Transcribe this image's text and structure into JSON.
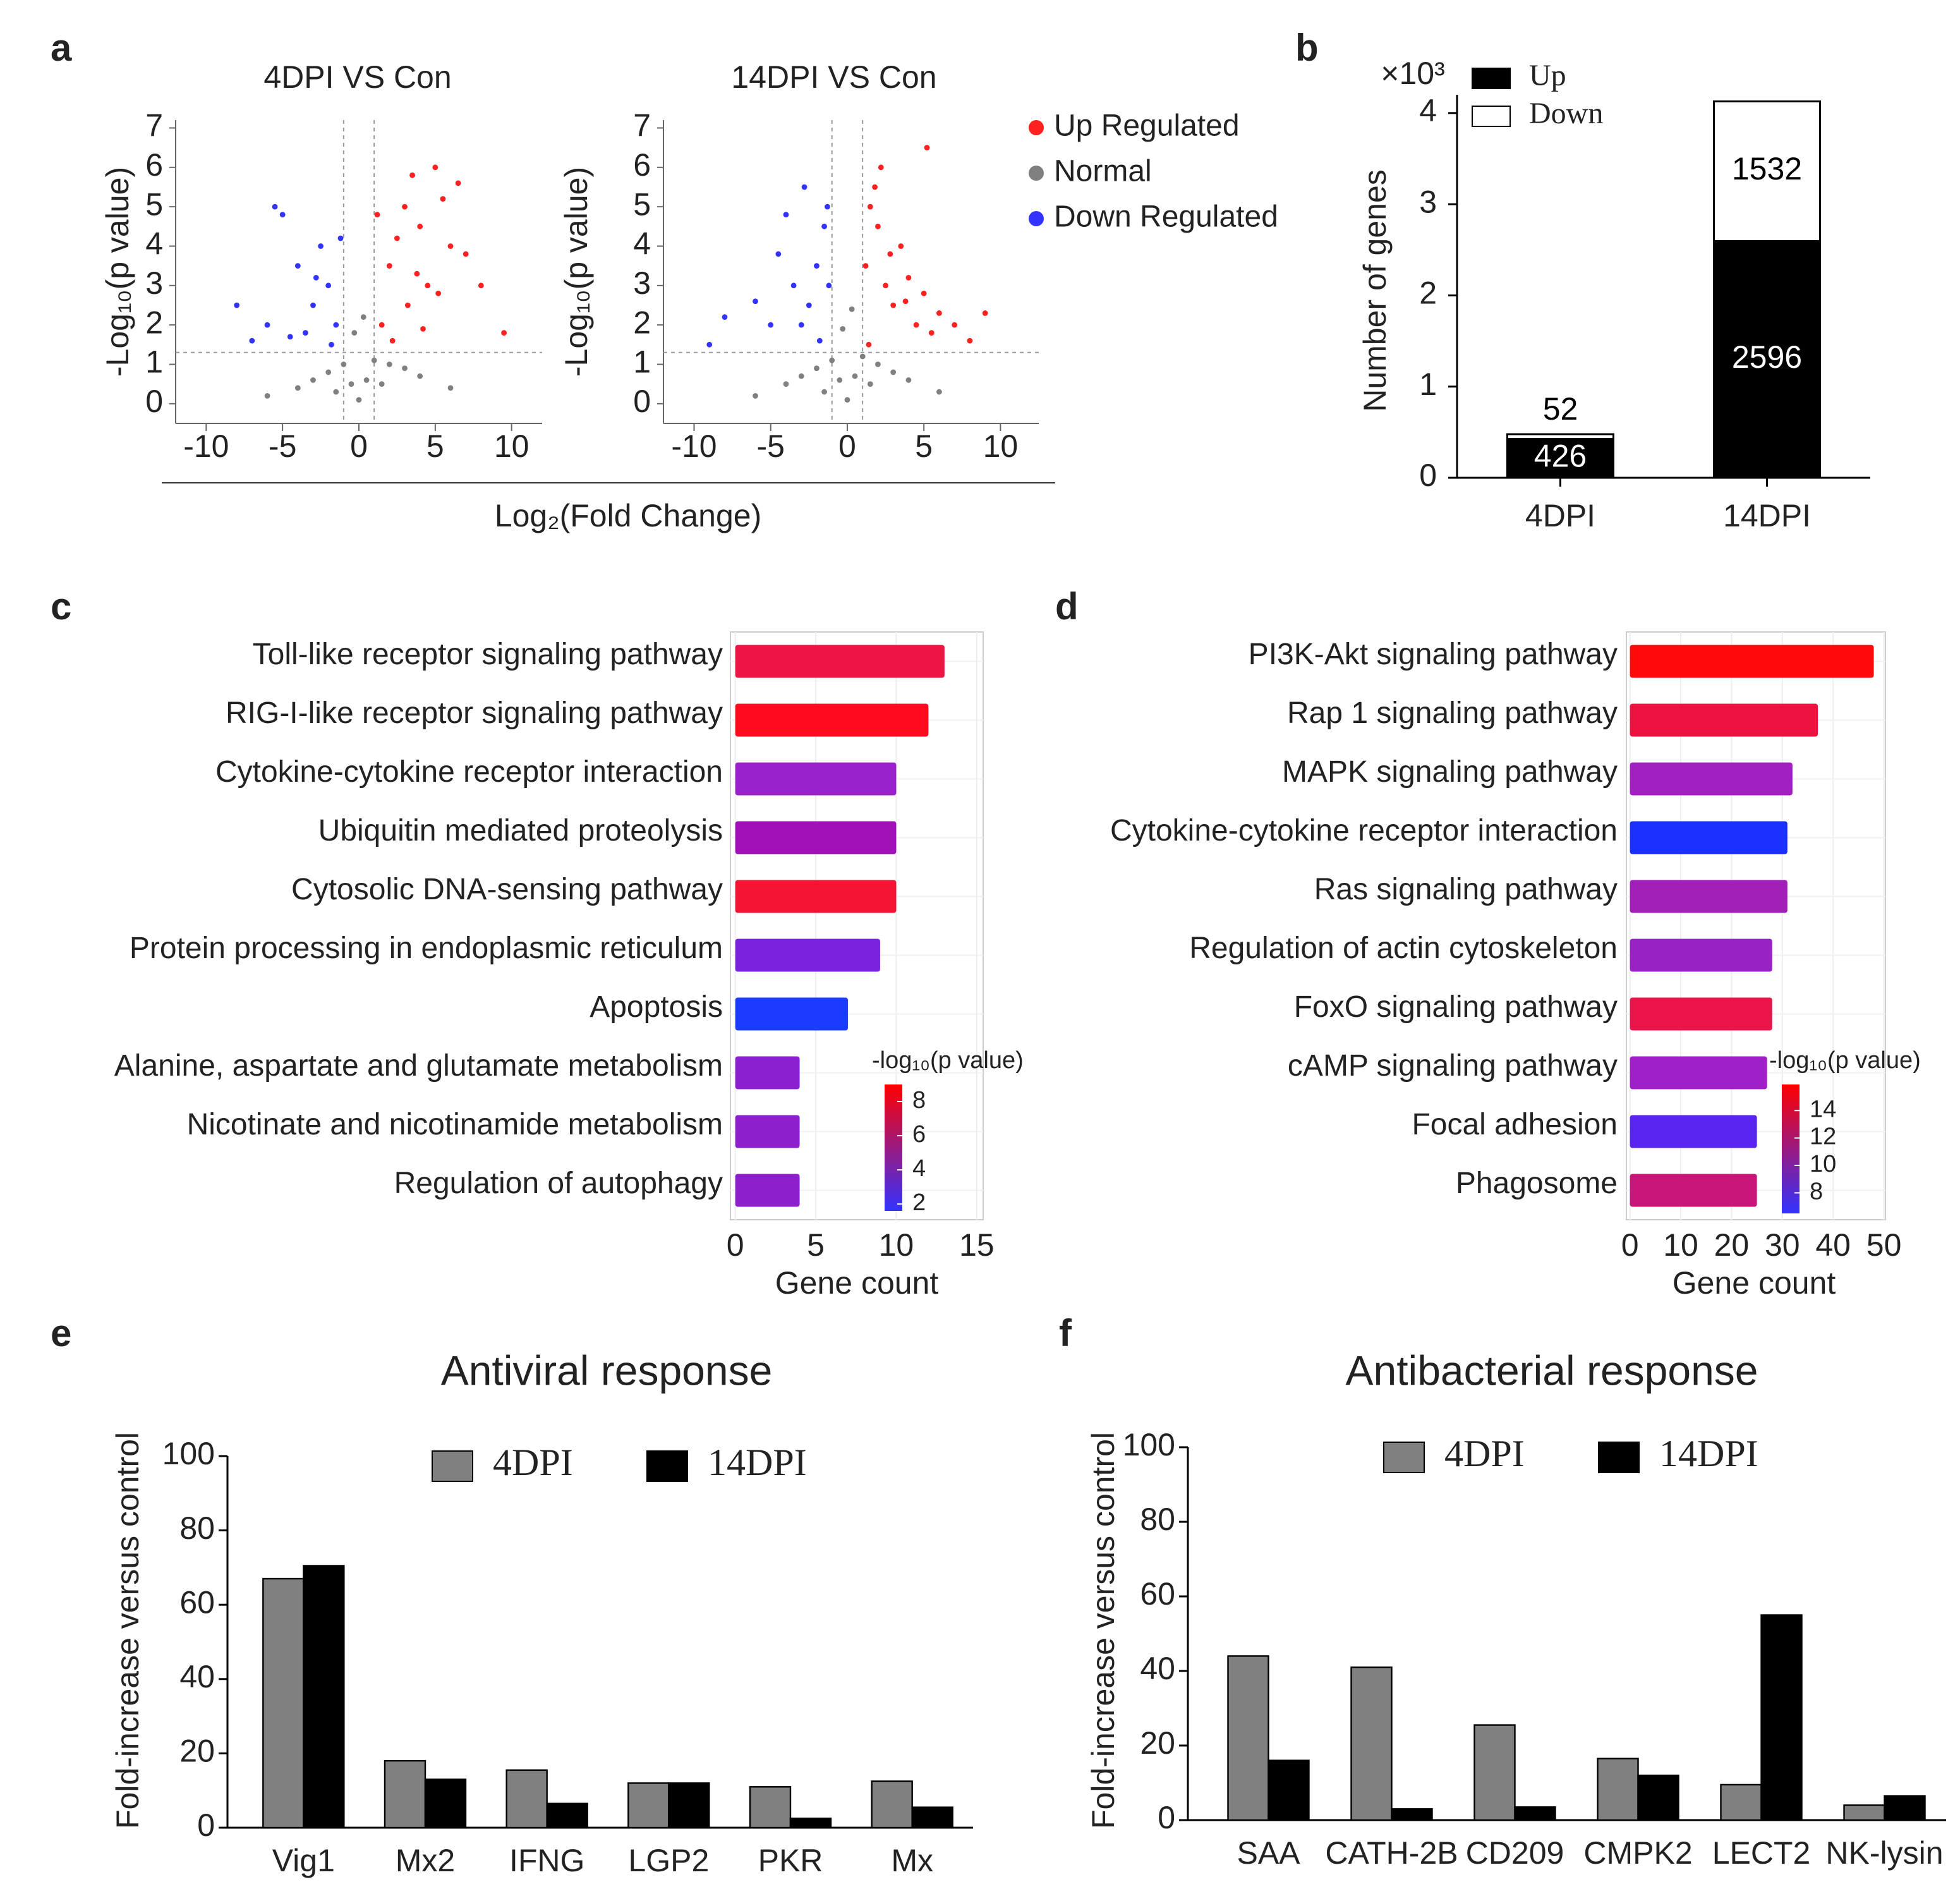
{
  "chart_data": [
    {
      "type": "scatter",
      "panel_label": "a",
      "title": "4DPI VS Con",
      "xlabel": "Log₂(Fold Change)",
      "ylabel": "-Log₁₀(p value)",
      "xlim": [
        -12,
        12
      ],
      "ylim": [
        -0.5,
        7.2
      ],
      "xticks": [
        -10,
        -5,
        0,
        5,
        10
      ],
      "yticks": [
        0,
        1,
        2,
        3,
        4,
        5,
        6,
        7
      ],
      "vlines": [
        -1,
        1
      ],
      "hline": 1.3,
      "series": [
        {
          "name": "Up Regulated",
          "color": "#ff2020",
          "x": [
            1.5,
            2,
            2.5,
            3,
            3.5,
            4,
            4.5,
            5,
            5.5,
            6,
            7,
            8,
            9.5,
            2.2,
            3.2,
            4.2,
            5.2,
            1.2,
            6.5,
            3.8
          ],
          "y": [
            2,
            3.5,
            4.2,
            5,
            5.8,
            4.5,
            3,
            6,
            5.2,
            4,
            3.8,
            3,
            1.8,
            1.6,
            2.5,
            1.9,
            2.8,
            4.8,
            5.6,
            3.3
          ]
        },
        {
          "name": "Normal",
          "color": "#808080",
          "x": [
            -0.5,
            0,
            0.5,
            -1,
            1,
            -2,
            2,
            -3,
            3,
            -4,
            4,
            -0.3,
            0.3,
            -1.5,
            1.5,
            -6,
            6
          ],
          "y": [
            0.5,
            0.1,
            0.6,
            1,
            1.1,
            0.8,
            1,
            0.6,
            0.9,
            0.4,
            0.7,
            1.8,
            2.2,
            0.3,
            0.5,
            0.2,
            0.4
          ]
        },
        {
          "name": "Down Regulated",
          "color": "#3333ff",
          "x": [
            -1.5,
            -2,
            -2.5,
            -3,
            -3.5,
            -4,
            -5,
            -6,
            -7,
            -8,
            -1.8,
            -2.8,
            -1.2,
            -4.5,
            -5.5
          ],
          "y": [
            2,
            3,
            4,
            2.5,
            1.8,
            3.5,
            4.8,
            2,
            1.6,
            2.5,
            1.5,
            3.2,
            4.2,
            1.7,
            5
          ]
        }
      ]
    },
    {
      "type": "scatter",
      "title": "14DPI VS Con",
      "ylabel": "-Log₁₀(p value)",
      "legend": "right",
      "xlim": [
        -12,
        12.5
      ],
      "ylim": [
        -0.5,
        7.2
      ],
      "xticks": [
        -10,
        -5,
        0,
        5,
        10
      ],
      "yticks": [
        0,
        1,
        2,
        3,
        4,
        5,
        6,
        7
      ],
      "vlines": [
        -1,
        1
      ],
      "hline": 1.3,
      "series": [
        {
          "name": "Up Regulated",
          "color": "#ff2020",
          "x": [
            1.2,
            1.5,
            2,
            2.5,
            3,
            3.5,
            4,
            4.5,
            5,
            5.5,
            6,
            7,
            8,
            9,
            1.8,
            2.8,
            3.8,
            1.4,
            2.2,
            5.2
          ],
          "y": [
            3.5,
            5,
            4.5,
            3,
            2.5,
            4,
            3.2,
            2,
            2.8,
            1.8,
            2.3,
            2,
            1.6,
            2.3,
            5.5,
            3.8,
            2.6,
            1.5,
            6,
            6.5
          ]
        },
        {
          "name": "Normal",
          "color": "#808080",
          "x": [
            -0.5,
            0,
            0.5,
            -1,
            1,
            -2,
            2,
            -3,
            3,
            -4,
            4,
            -0.3,
            0.3,
            -1.5,
            1.5,
            -6,
            6
          ],
          "y": [
            0.6,
            0.1,
            0.7,
            1.1,
            1.2,
            0.9,
            1,
            0.7,
            0.8,
            0.5,
            0.6,
            1.9,
            2.4,
            0.3,
            0.5,
            0.2,
            0.3
          ]
        },
        {
          "name": "Down Regulated",
          "color": "#3333ff",
          "x": [
            -1.2,
            -1.5,
            -2,
            -2.5,
            -3,
            -3.5,
            -4,
            -5,
            -6,
            -8,
            -9,
            -1.8,
            -2.8,
            -1.3,
            -4.5
          ],
          "y": [
            3,
            4.5,
            3.5,
            2.5,
            2,
            3,
            4.8,
            2,
            2.6,
            2.2,
            1.5,
            1.6,
            5.5,
            5,
            3.8
          ]
        }
      ]
    },
    {
      "type": "stacked_bar",
      "panel_label": "b",
      "ylabel": "Number of genes",
      "multiplier": "×10³",
      "legend": "top-left",
      "categories": [
        "4DPI",
        "14DPI"
      ],
      "ylim": [
        0,
        4200
      ],
      "yticks": [
        {
          "value": 0,
          "label": "0"
        },
        {
          "value": 1000,
          "label": "1"
        },
        {
          "value": 2000,
          "label": "2"
        },
        {
          "value": 3000,
          "label": "3"
        },
        {
          "value": 4000,
          "label": "4"
        }
      ],
      "series": [
        {
          "name": "Up",
          "color": "#000000",
          "values": [
            426,
            2596
          ]
        },
        {
          "name": "Down",
          "color": "#ffffff",
          "values": [
            52,
            1532
          ]
        }
      ]
    },
    {
      "type": "barh",
      "panel_label": "c",
      "xlabel": "Gene count",
      "grid": true,
      "categories": [
        "Toll-like receptor signaling pathway",
        "RIG-I-like receptor signaling pathway",
        "Cytokine-cytokine receptor interaction",
        "Ubiquitin mediated proteolysis",
        "Cytosolic DNA-sensing pathway",
        "Protein processing in endoplasmic reticulum",
        "Apoptosis",
        "Alanine, aspartate and glutamate metabolism",
        "Nicotinate and nicotinamide metabolism",
        "Regulation of autophagy"
      ],
      "values": [
        13,
        12,
        10,
        10,
        10,
        9,
        7,
        4,
        4,
        4
      ],
      "colors": [
        "#ee1544",
        "#ff0a1e",
        "#9922cc",
        "#a012b8",
        "#f51433",
        "#7a22dd",
        "#1a3cff",
        "#8a20d0",
        "#8e1fcc",
        "#8e1fcc"
      ],
      "xlim": [
        -0.3,
        15.4
      ],
      "xticks": [
        0,
        5,
        10,
        15
      ],
      "colorbar": {
        "label": "-log₁₀(p value)",
        "lim": [
          1.6,
          9
        ],
        "ticks": [
          2,
          4,
          6,
          8
        ],
        "colors": [
          "#3333ff",
          "#ff0000"
        ]
      }
    },
    {
      "type": "barh",
      "panel_label": "d",
      "xlabel": "Gene count",
      "grid": true,
      "categories": [
        "PI3K-Akt signaling pathway",
        "Rap 1 signaling pathway",
        "MAPK signaling pathway",
        "Cytokine-cytokine receptor interaction",
        "Ras signaling pathway",
        "Regulation of actin cytoskeleton",
        "FoxO signaling pathway",
        "cAMP signaling pathway",
        "Focal adhesion",
        "Phagosome"
      ],
      "values": [
        48,
        37,
        32,
        31,
        31,
        28,
        28,
        27,
        25,
        25
      ],
      "colors": [
        "#ff0a0a",
        "#ee1240",
        "#a020c0",
        "#1a30ff",
        "#a020b8",
        "#9822c4",
        "#e8144a",
        "#a020c8",
        "#5a24f0",
        "#c8167a"
      ],
      "xlim": [
        -0.7,
        50.3
      ],
      "xticks": [
        0,
        10,
        20,
        30,
        40,
        50
      ],
      "colorbar": {
        "label": "-log₁₀(p value)",
        "lim": [
          6.5,
          15.9
        ],
        "ticks": [
          8,
          10,
          12,
          14
        ],
        "colors": [
          "#3333ff",
          "#ff0000"
        ]
      }
    },
    {
      "type": "grouped_bar",
      "panel_label": "e",
      "title": "Antiviral response",
      "ylabel": "Fold-increase versus control",
      "legend": "top",
      "categories": [
        "Vig1",
        "Mx2",
        "IFNG",
        "LGP2",
        "PKR",
        "Mx"
      ],
      "ylim": [
        0,
        100
      ],
      "yticks": [
        0,
        20,
        40,
        60,
        80,
        100
      ],
      "series": [
        {
          "name": "4DPI",
          "color": "#808080",
          "values": [
            67,
            18,
            15.5,
            12,
            11,
            12.5
          ]
        },
        {
          "name": "14DPI",
          "color": "#000000",
          "values": [
            70.5,
            13,
            6.5,
            12,
            2.5,
            5.5
          ]
        }
      ]
    },
    {
      "type": "grouped_bar",
      "panel_label": "f",
      "title": "Antibacterial response",
      "ylabel": "Fold-increase versus control",
      "legend": "top",
      "categories": [
        "SAA",
        "CATH-2B",
        "CD209",
        "CMPK2",
        "LECT2",
        "NK-lysin"
      ],
      "ylim": [
        0,
        100
      ],
      "yticks": [
        0,
        20,
        40,
        60,
        80,
        100
      ],
      "series": [
        {
          "name": "4DPI",
          "color": "#808080",
          "values": [
            44,
            41,
            25.5,
            16.5,
            9.5,
            4
          ]
        },
        {
          "name": "14DPI",
          "color": "#000000",
          "values": [
            16,
            3,
            3.5,
            12,
            55,
            6.5
          ]
        }
      ]
    }
  ]
}
